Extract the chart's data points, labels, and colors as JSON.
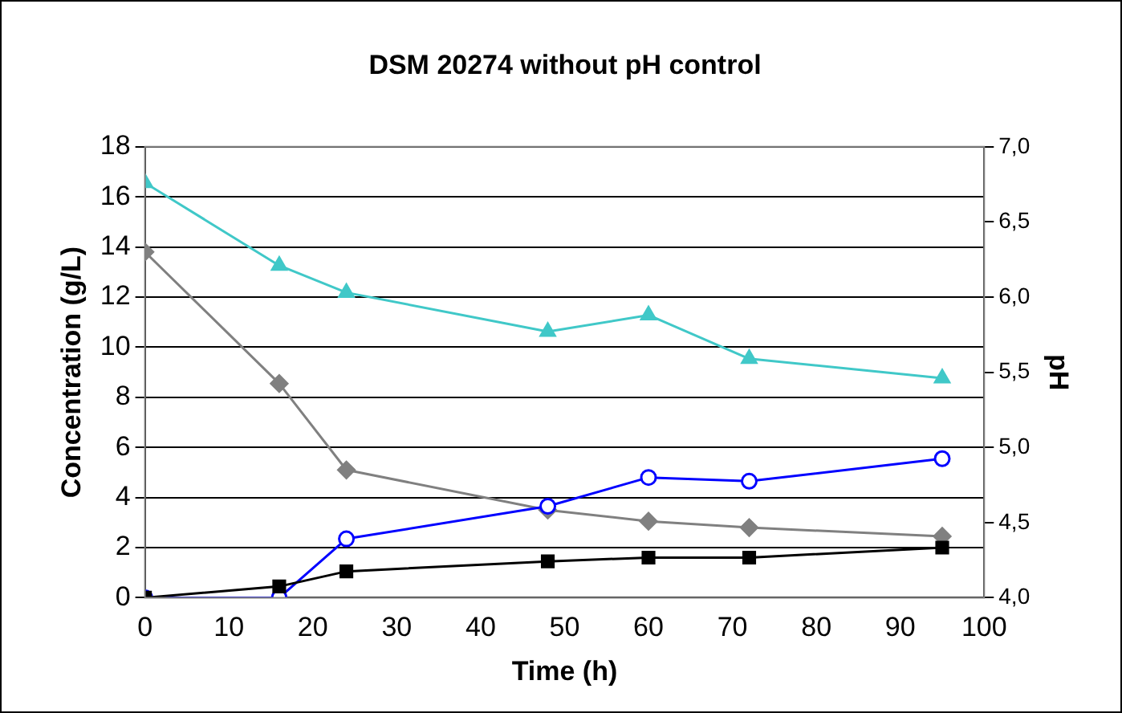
{
  "chart_data": {
    "type": "line",
    "title": "DSM 20274 without pH control",
    "xlabel": "Time (h)",
    "ylabel": "Concentration (g/L)",
    "y2label": "pH",
    "x": [
      0,
      16,
      24,
      48,
      60,
      72,
      95
    ],
    "xlim": [
      0,
      100
    ],
    "xticks": [
      0,
      10,
      20,
      30,
      40,
      50,
      60,
      70,
      80,
      90,
      100
    ],
    "ylim": [
      0,
      18
    ],
    "yticks": [
      0,
      2,
      4,
      6,
      8,
      10,
      12,
      14,
      16,
      18
    ],
    "y2lim": [
      4,
      7
    ],
    "y2ticks": [
      {
        "value": 4,
        "label": "4,0"
      },
      {
        "value": 4.5,
        "label": "4,5"
      },
      {
        "value": 5,
        "label": "5,0"
      },
      {
        "value": 5.5,
        "label": "5,5"
      },
      {
        "value": 6,
        "label": "6,0"
      },
      {
        "value": 6.5,
        "label": "6,5"
      },
      {
        "value": 7,
        "label": "7,0"
      }
    ],
    "grid": "y",
    "legend": false,
    "line_style": "solid",
    "series": [
      {
        "color": "#40c8c8",
        "axis": "y2",
        "marker": "triangle",
        "values": [
          6.76,
          6.21,
          6.03,
          5.77,
          5.88,
          5.59,
          5.46
        ]
      },
      {
        "color": "#808080",
        "marker": "diamond",
        "values": [
          13.8,
          8.55,
          5.1,
          3.5,
          3.05,
          2.8,
          2.45
        ]
      },
      {
        "color": "#0000ff",
        "marker": "circle",
        "values": [
          0,
          0,
          2.35,
          3.65,
          4.8,
          4.65,
          5.55
        ]
      },
      {
        "color": "#000000",
        "marker": "square",
        "values": [
          0,
          0.45,
          1.05,
          1.45,
          1.6,
          1.6,
          2.0
        ]
      }
    ]
  }
}
